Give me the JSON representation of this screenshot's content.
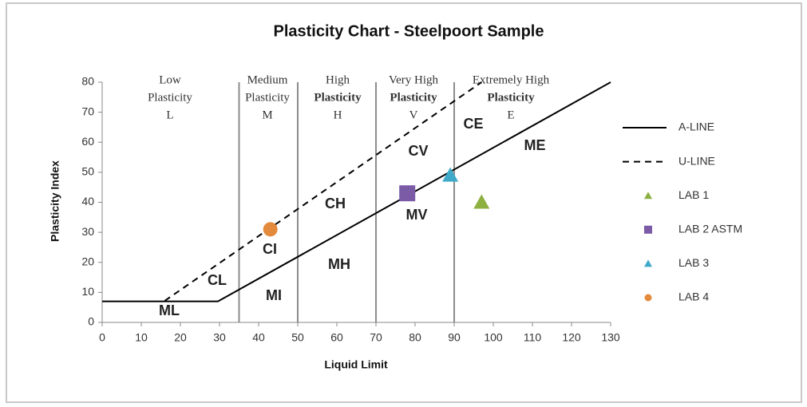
{
  "chart_data": {
    "type": "line",
    "title": "Plasticity Chart - Steelpoort Sample",
    "xlabel": "Liquid Limit",
    "ylabel": "Plasticity Index",
    "xlim": [
      0,
      130
    ],
    "xticks": [
      0,
      10,
      20,
      30,
      40,
      50,
      60,
      70,
      80,
      90,
      100,
      110,
      120,
      130
    ],
    "ylim": [
      0,
      80
    ],
    "yticks": [
      0,
      10,
      20,
      30,
      40,
      50,
      60,
      70,
      80
    ],
    "boundaries": [
      35,
      50,
      70,
      90
    ],
    "boundary_color": "#8c8c8c",
    "series": [
      {
        "name": "A-LINE",
        "color": "#000000",
        "dash": "solid",
        "marker": "none",
        "x": [
          0,
          29.6,
          130
        ],
        "values": [
          7,
          7,
          80
        ]
      },
      {
        "name": "U-LINE",
        "color": "#000000",
        "dash": "dashed",
        "marker": "none",
        "x": [
          16,
          97
        ],
        "values": [
          7.2,
          80
        ]
      },
      {
        "name": "LAB 1",
        "color": "#8db040",
        "dash": "none",
        "marker": "triangle",
        "x": [
          97
        ],
        "values": [
          40
        ]
      },
      {
        "name": "LAB 2 ASTM",
        "color": "#7b5aa6",
        "dash": "none",
        "marker": "square",
        "x": [
          78
        ],
        "values": [
          43
        ]
      },
      {
        "name": "LAB 3",
        "color": "#3fa9c9",
        "dash": "none",
        "marker": "triangle",
        "x": [
          89
        ],
        "values": [
          49
        ]
      },
      {
        "name": "LAB 4",
        "color": "#e38a3c",
        "dash": "none",
        "marker": "circle",
        "x": [
          43
        ],
        "values": [
          31
        ]
      }
    ],
    "zone_headers": [
      [
        "Low",
        "Plasticity",
        "L"
      ],
      [
        "Medium",
        "Plasticity",
        "M"
      ],
      [
        "High",
        "Plasticity",
        "H"
      ],
      [
        "Very High",
        "Plasticity",
        "V"
      ],
      [
        "Extremely High",
        "Plasticity",
        "E"
      ]
    ],
    "zone_codes": [
      "ML",
      "CL",
      "MI",
      "CI",
      "MH",
      "CH",
      "MV",
      "CV",
      "CE",
      "ME"
    ]
  }
}
